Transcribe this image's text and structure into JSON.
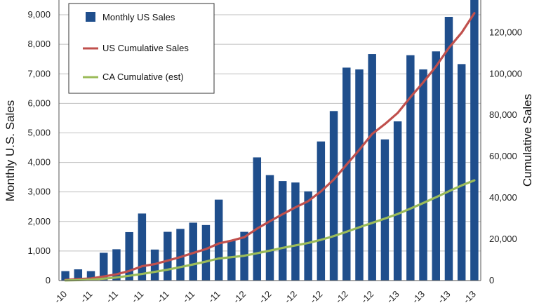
{
  "chart_data": {
    "type": "bar",
    "title": "",
    "ylabel": "Monthly U.S. Sales",
    "y2label": "Cumulative Sales",
    "ylim": [
      0,
      9500
    ],
    "y2lim": [
      0,
      135714
    ],
    "yticks": [
      "0",
      "1,000",
      "2,000",
      "3,000",
      "4,000",
      "5,000",
      "6,000",
      "7,000",
      "8,000",
      "9,000"
    ],
    "y2ticks": [
      "0",
      "20,000",
      "40,000",
      "60,000",
      "80,000",
      "100,000",
      "120,000"
    ],
    "xtick_labels": [
      "-10",
      "-11",
      "-11",
      "-11",
      "-11",
      "-11",
      "-11",
      "-12",
      "-12",
      "-12",
      "-12",
      "-12",
      "-12",
      "-13",
      "-13",
      "-13",
      "-13"
    ],
    "legend": {
      "placement": "top-left",
      "items": [
        "Monthly US Sales",
        "US Cumulative Sales",
        "CA Cumulative (est)"
      ]
    },
    "colors": {
      "bar": "#1f4e8c",
      "us_line": "#c0504d",
      "ca_line": "#9bbb59",
      "grid": "#bfbfbf"
    },
    "grid": true,
    "series": [
      {
        "name": "Monthly US Sales",
        "type": "bar",
        "axis": "left",
        "values": [
          320,
          380,
          320,
          940,
          1060,
          1640,
          2270,
          1050,
          1650,
          1750,
          1960,
          1880,
          2740,
          1360,
          1650,
          4170,
          3570,
          3370,
          3320,
          3020,
          4710,
          5740,
          7210,
          7150,
          7670,
          4780,
          5390,
          7630,
          7150,
          7760,
          8930,
          7330,
          9500
        ]
      },
      {
        "name": "US Cumulative Sales",
        "type": "line",
        "axis": "right",
        "values": [
          320,
          700,
          1020,
          1960,
          3020,
          4660,
          6930,
          7980,
          9630,
          11380,
          13340,
          15220,
          17960,
          19320,
          20970,
          25140,
          28710,
          32080,
          35400,
          38420,
          43130,
          48870,
          56080,
          63230,
          70900,
          75680,
          81070,
          88700,
          95850,
          103610,
          112540,
          119870,
          129370
        ]
      },
      {
        "name": "CA Cumulative (est)",
        "type": "line",
        "axis": "right",
        "values": [
          80,
          200,
          450,
          900,
          1500,
          2300,
          3200,
          4200,
          5300,
          6500,
          7800,
          9200,
          10700,
          11300,
          12000,
          13200,
          14500,
          15800,
          17000,
          18200,
          19700,
          21500,
          23600,
          25800,
          27900,
          30000,
          32200,
          34800,
          37500,
          40300,
          43200,
          46000,
          48500
        ]
      }
    ]
  }
}
